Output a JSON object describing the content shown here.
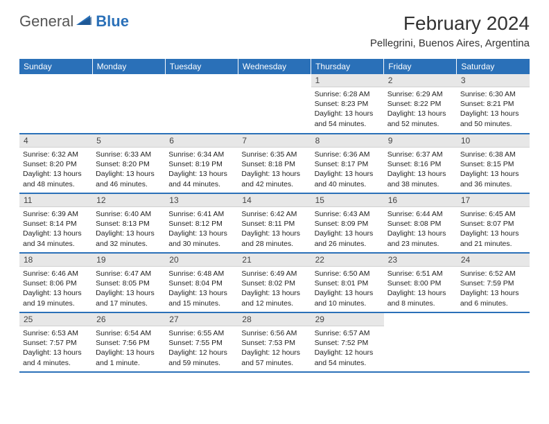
{
  "brand": {
    "part1": "General",
    "part2": "Blue"
  },
  "title": "February 2024",
  "location": "Pellegrini, Buenos Aires, Argentina",
  "colors": {
    "header_bg": "#2a70b8",
    "header_text": "#ffffff",
    "daynum_bg": "#e7e7e7",
    "border": "#2a70b8",
    "body_text": "#222222"
  },
  "typography": {
    "title_fontsize": 28,
    "location_fontsize": 15,
    "weekday_fontsize": 12,
    "body_fontsize": 10.5
  },
  "weekdays": [
    "Sunday",
    "Monday",
    "Tuesday",
    "Wednesday",
    "Thursday",
    "Friday",
    "Saturday"
  ],
  "weeks": [
    [
      null,
      null,
      null,
      null,
      {
        "n": "1",
        "sunrise": "Sunrise: 6:28 AM",
        "sunset": "Sunset: 8:23 PM",
        "daylight": "Daylight: 13 hours and 54 minutes."
      },
      {
        "n": "2",
        "sunrise": "Sunrise: 6:29 AM",
        "sunset": "Sunset: 8:22 PM",
        "daylight": "Daylight: 13 hours and 52 minutes."
      },
      {
        "n": "3",
        "sunrise": "Sunrise: 6:30 AM",
        "sunset": "Sunset: 8:21 PM",
        "daylight": "Daylight: 13 hours and 50 minutes."
      }
    ],
    [
      {
        "n": "4",
        "sunrise": "Sunrise: 6:32 AM",
        "sunset": "Sunset: 8:20 PM",
        "daylight": "Daylight: 13 hours and 48 minutes."
      },
      {
        "n": "5",
        "sunrise": "Sunrise: 6:33 AM",
        "sunset": "Sunset: 8:20 PM",
        "daylight": "Daylight: 13 hours and 46 minutes."
      },
      {
        "n": "6",
        "sunrise": "Sunrise: 6:34 AM",
        "sunset": "Sunset: 8:19 PM",
        "daylight": "Daylight: 13 hours and 44 minutes."
      },
      {
        "n": "7",
        "sunrise": "Sunrise: 6:35 AM",
        "sunset": "Sunset: 8:18 PM",
        "daylight": "Daylight: 13 hours and 42 minutes."
      },
      {
        "n": "8",
        "sunrise": "Sunrise: 6:36 AM",
        "sunset": "Sunset: 8:17 PM",
        "daylight": "Daylight: 13 hours and 40 minutes."
      },
      {
        "n": "9",
        "sunrise": "Sunrise: 6:37 AM",
        "sunset": "Sunset: 8:16 PM",
        "daylight": "Daylight: 13 hours and 38 minutes."
      },
      {
        "n": "10",
        "sunrise": "Sunrise: 6:38 AM",
        "sunset": "Sunset: 8:15 PM",
        "daylight": "Daylight: 13 hours and 36 minutes."
      }
    ],
    [
      {
        "n": "11",
        "sunrise": "Sunrise: 6:39 AM",
        "sunset": "Sunset: 8:14 PM",
        "daylight": "Daylight: 13 hours and 34 minutes."
      },
      {
        "n": "12",
        "sunrise": "Sunrise: 6:40 AM",
        "sunset": "Sunset: 8:13 PM",
        "daylight": "Daylight: 13 hours and 32 minutes."
      },
      {
        "n": "13",
        "sunrise": "Sunrise: 6:41 AM",
        "sunset": "Sunset: 8:12 PM",
        "daylight": "Daylight: 13 hours and 30 minutes."
      },
      {
        "n": "14",
        "sunrise": "Sunrise: 6:42 AM",
        "sunset": "Sunset: 8:11 PM",
        "daylight": "Daylight: 13 hours and 28 minutes."
      },
      {
        "n": "15",
        "sunrise": "Sunrise: 6:43 AM",
        "sunset": "Sunset: 8:09 PM",
        "daylight": "Daylight: 13 hours and 26 minutes."
      },
      {
        "n": "16",
        "sunrise": "Sunrise: 6:44 AM",
        "sunset": "Sunset: 8:08 PM",
        "daylight": "Daylight: 13 hours and 23 minutes."
      },
      {
        "n": "17",
        "sunrise": "Sunrise: 6:45 AM",
        "sunset": "Sunset: 8:07 PM",
        "daylight": "Daylight: 13 hours and 21 minutes."
      }
    ],
    [
      {
        "n": "18",
        "sunrise": "Sunrise: 6:46 AM",
        "sunset": "Sunset: 8:06 PM",
        "daylight": "Daylight: 13 hours and 19 minutes."
      },
      {
        "n": "19",
        "sunrise": "Sunrise: 6:47 AM",
        "sunset": "Sunset: 8:05 PM",
        "daylight": "Daylight: 13 hours and 17 minutes."
      },
      {
        "n": "20",
        "sunrise": "Sunrise: 6:48 AM",
        "sunset": "Sunset: 8:04 PM",
        "daylight": "Daylight: 13 hours and 15 minutes."
      },
      {
        "n": "21",
        "sunrise": "Sunrise: 6:49 AM",
        "sunset": "Sunset: 8:02 PM",
        "daylight": "Daylight: 13 hours and 12 minutes."
      },
      {
        "n": "22",
        "sunrise": "Sunrise: 6:50 AM",
        "sunset": "Sunset: 8:01 PM",
        "daylight": "Daylight: 13 hours and 10 minutes."
      },
      {
        "n": "23",
        "sunrise": "Sunrise: 6:51 AM",
        "sunset": "Sunset: 8:00 PM",
        "daylight": "Daylight: 13 hours and 8 minutes."
      },
      {
        "n": "24",
        "sunrise": "Sunrise: 6:52 AM",
        "sunset": "Sunset: 7:59 PM",
        "daylight": "Daylight: 13 hours and 6 minutes."
      }
    ],
    [
      {
        "n": "25",
        "sunrise": "Sunrise: 6:53 AM",
        "sunset": "Sunset: 7:57 PM",
        "daylight": "Daylight: 13 hours and 4 minutes."
      },
      {
        "n": "26",
        "sunrise": "Sunrise: 6:54 AM",
        "sunset": "Sunset: 7:56 PM",
        "daylight": "Daylight: 13 hours and 1 minute."
      },
      {
        "n": "27",
        "sunrise": "Sunrise: 6:55 AM",
        "sunset": "Sunset: 7:55 PM",
        "daylight": "Daylight: 12 hours and 59 minutes."
      },
      {
        "n": "28",
        "sunrise": "Sunrise: 6:56 AM",
        "sunset": "Sunset: 7:53 PM",
        "daylight": "Daylight: 12 hours and 57 minutes."
      },
      {
        "n": "29",
        "sunrise": "Sunrise: 6:57 AM",
        "sunset": "Sunset: 7:52 PM",
        "daylight": "Daylight: 12 hours and 54 minutes."
      },
      null,
      null
    ]
  ]
}
